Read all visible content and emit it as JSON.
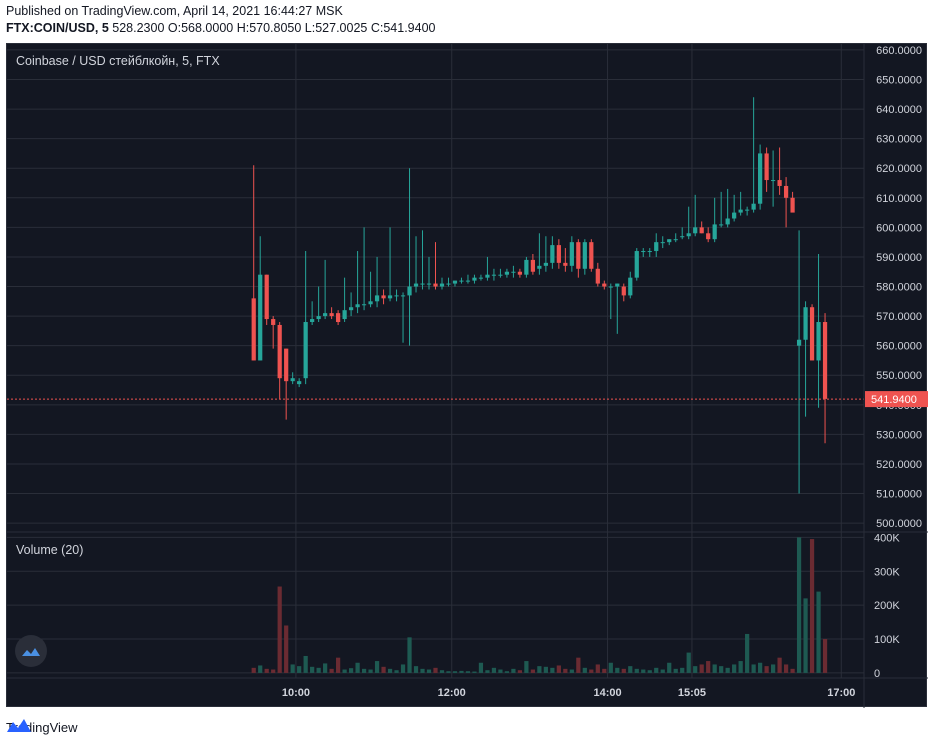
{
  "header": {
    "published": "Published on TradingView.com, April 14, 2021 16:44:27 MSK",
    "symbol": "FTX:COIN/USD, 5",
    "ohlc": "528.2300 O:568.0000 H:570.8050 L:527.0025 C:541.9400"
  },
  "colors": {
    "background": "#131722",
    "grid": "#2a2e39",
    "up": "#26a69a",
    "down": "#ef5350",
    "up_volume": "#1e5a52",
    "down_volume": "#6b2b32",
    "text": "#d1d4dc"
  },
  "footer": {
    "brand": "TradingView"
  },
  "chart_data": {
    "type": "candlestick",
    "title": "Coinbase / USD стейблкойн, 5, FTX",
    "volume_label": "Volume (20)",
    "last_price_label": "541.9400",
    "last_price": 541.94,
    "price_ticks": [
      "660.0000",
      "650.0000",
      "640.0000",
      "630.0000",
      "620.0000",
      "610.0000",
      "600.0000",
      "590.0000",
      "580.0000",
      "570.0000",
      "560.0000",
      "550.0000",
      "540.0000",
      "530.0000",
      "520.0000",
      "510.0000",
      "500.0000"
    ],
    "price_tick_values": [
      660,
      650,
      640,
      630,
      620,
      610,
      600,
      590,
      580,
      570,
      560,
      550,
      540,
      530,
      520,
      510,
      500
    ],
    "ylim": [
      497,
      662
    ],
    "volume_ticks": [
      "400K",
      "300K",
      "200K",
      "100K",
      "0"
    ],
    "volume_tick_values": [
      400000,
      300000,
      200000,
      100000,
      0
    ],
    "volume_ylim": [
      -15000,
      410000
    ],
    "time_ticks": [
      {
        "label": "10:00",
        "index": 6.5
      },
      {
        "label": "12:00",
        "index": 30.5
      },
      {
        "label": "14:00",
        "index": 54.5
      },
      {
        "label": "15:05",
        "index": 67.5
      },
      {
        "label": "17:00",
        "index": 90.5
      }
    ],
    "x_index_range": [
      -38,
      94
    ],
    "candles": [
      {
        "o": 576,
        "h": 621,
        "l": 555,
        "c": 555,
        "v": 15000
      },
      {
        "o": 555,
        "h": 597,
        "l": 555,
        "c": 584,
        "v": 22000
      },
      {
        "o": 584,
        "h": 584,
        "l": 567,
        "c": 569,
        "v": 12000
      },
      {
        "o": 569,
        "h": 570,
        "l": 559,
        "c": 567,
        "v": 10000
      },
      {
        "o": 567,
        "h": 568,
        "l": 542,
        "c": 549,
        "v": 255000
      },
      {
        "o": 559,
        "h": 559,
        "l": 535,
        "c": 548,
        "v": 140000
      },
      {
        "o": 548,
        "h": 551,
        "l": 547,
        "c": 549,
        "v": 25000
      },
      {
        "o": 547,
        "h": 549,
        "l": 546,
        "c": 548,
        "v": 20000
      },
      {
        "o": 549,
        "h": 592,
        "l": 547,
        "c": 568,
        "v": 50000
      },
      {
        "o": 568,
        "h": 575,
        "l": 567,
        "c": 569,
        "v": 18000
      },
      {
        "o": 569,
        "h": 580,
        "l": 568,
        "c": 570,
        "v": 15000
      },
      {
        "o": 570,
        "h": 589,
        "l": 569,
        "c": 571,
        "v": 28000
      },
      {
        "o": 571,
        "h": 573,
        "l": 569,
        "c": 570,
        "v": 12000
      },
      {
        "o": 571,
        "h": 572,
        "l": 567,
        "c": 568,
        "v": 45000
      },
      {
        "o": 569,
        "h": 583,
        "l": 568,
        "c": 572,
        "v": 10000
      },
      {
        "o": 572,
        "h": 578,
        "l": 570,
        "c": 573,
        "v": 14000
      },
      {
        "o": 573,
        "h": 592,
        "l": 571,
        "c": 574,
        "v": 30000
      },
      {
        "o": 574,
        "h": 600,
        "l": 572,
        "c": 574,
        "v": 12000
      },
      {
        "o": 574,
        "h": 585,
        "l": 573,
        "c": 575,
        "v": 10000
      },
      {
        "o": 575,
        "h": 590,
        "l": 573,
        "c": 577,
        "v": 35000
      },
      {
        "o": 577,
        "h": 579,
        "l": 574,
        "c": 576,
        "v": 18000
      },
      {
        "o": 576,
        "h": 600,
        "l": 575,
        "c": 577,
        "v": 12000
      },
      {
        "o": 577,
        "h": 579,
        "l": 575,
        "c": 577,
        "v": 8000
      },
      {
        "o": 577,
        "h": 578,
        "l": 561,
        "c": 577,
        "v": 25000
      },
      {
        "o": 577,
        "h": 620,
        "l": 560,
        "c": 580,
        "v": 105000
      },
      {
        "o": 580,
        "h": 597,
        "l": 578,
        "c": 581,
        "v": 20000
      },
      {
        "o": 581,
        "h": 599,
        "l": 579,
        "c": 581,
        "v": 12000
      },
      {
        "o": 581,
        "h": 590,
        "l": 579,
        "c": 581,
        "v": 10000
      },
      {
        "o": 581,
        "h": 595,
        "l": 579,
        "c": 580,
        "v": 15000
      },
      {
        "o": 580,
        "h": 583,
        "l": 579,
        "c": 581,
        "v": 8000
      },
      {
        "o": 581,
        "h": 583,
        "l": 580,
        "c": 581,
        "v": 5000
      },
      {
        "o": 581,
        "h": 582,
        "l": 580,
        "c": 582,
        "v": 5000
      },
      {
        "o": 582,
        "h": 583,
        "l": 581,
        "c": 582,
        "v": 6000
      },
      {
        "o": 582,
        "h": 584,
        "l": 581,
        "c": 582,
        "v": 5000
      },
      {
        "o": 582,
        "h": 584,
        "l": 581,
        "c": 583,
        "v": 4000
      },
      {
        "o": 583,
        "h": 584,
        "l": 582,
        "c": 583,
        "v": 30000
      },
      {
        "o": 583,
        "h": 590,
        "l": 582,
        "c": 584,
        "v": 8000
      },
      {
        "o": 584,
        "h": 586,
        "l": 582,
        "c": 584,
        "v": 15000
      },
      {
        "o": 584,
        "h": 586,
        "l": 583,
        "c": 584,
        "v": 10000
      },
      {
        "o": 584,
        "h": 586,
        "l": 583,
        "c": 585,
        "v": 5000
      },
      {
        "o": 585,
        "h": 587,
        "l": 583,
        "c": 585,
        "v": 12000
      },
      {
        "o": 585,
        "h": 586,
        "l": 583,
        "c": 584,
        "v": 8000
      },
      {
        "o": 584,
        "h": 590,
        "l": 583,
        "c": 589,
        "v": 35000
      },
      {
        "o": 589,
        "h": 591,
        "l": 584,
        "c": 585,
        "v": 10000
      },
      {
        "o": 586,
        "h": 598,
        "l": 584,
        "c": 587,
        "v": 20000
      },
      {
        "o": 587,
        "h": 597,
        "l": 585,
        "c": 588,
        "v": 18000
      },
      {
        "o": 588,
        "h": 597,
        "l": 586,
        "c": 594,
        "v": 15000
      },
      {
        "o": 594,
        "h": 596,
        "l": 586,
        "c": 588,
        "v": 22000
      },
      {
        "o": 588,
        "h": 593,
        "l": 585,
        "c": 587,
        "v": 12000
      },
      {
        "o": 587,
        "h": 597,
        "l": 585,
        "c": 595,
        "v": 10000
      },
      {
        "o": 595,
        "h": 596,
        "l": 583,
        "c": 586,
        "v": 45000
      },
      {
        "o": 586,
        "h": 596,
        "l": 584,
        "c": 595,
        "v": 15000
      },
      {
        "o": 595,
        "h": 596,
        "l": 585,
        "c": 586,
        "v": 10000
      },
      {
        "o": 586,
        "h": 588,
        "l": 580,
        "c": 581,
        "v": 25000
      },
      {
        "o": 581,
        "h": 582,
        "l": 579,
        "c": 580,
        "v": 12000
      },
      {
        "o": 580,
        "h": 581,
        "l": 569,
        "c": 580,
        "v": 30000
      },
      {
        "o": 580,
        "h": 581,
        "l": 564,
        "c": 581,
        "v": 15000
      },
      {
        "o": 580,
        "h": 581,
        "l": 575,
        "c": 577,
        "v": 12000
      },
      {
        "o": 577,
        "h": 585,
        "l": 576,
        "c": 583,
        "v": 20000
      },
      {
        "o": 583,
        "h": 593,
        "l": 582,
        "c": 592,
        "v": 12000
      },
      {
        "o": 592,
        "h": 593,
        "l": 590,
        "c": 592,
        "v": 10000
      },
      {
        "o": 592,
        "h": 593,
        "l": 590,
        "c": 592,
        "v": 8000
      },
      {
        "o": 592,
        "h": 598,
        "l": 590,
        "c": 595,
        "v": 15000
      },
      {
        "o": 595,
        "h": 597,
        "l": 593,
        "c": 595,
        "v": 10000
      },
      {
        "o": 595,
        "h": 596,
        "l": 594,
        "c": 596,
        "v": 30000
      },
      {
        "o": 596,
        "h": 598,
        "l": 595,
        "c": 596,
        "v": 12000
      },
      {
        "o": 597,
        "h": 600,
        "l": 596,
        "c": 597,
        "v": 15000
      },
      {
        "o": 597,
        "h": 607,
        "l": 596,
        "c": 598,
        "v": 60000
      },
      {
        "o": 598,
        "h": 611,
        "l": 597,
        "c": 600,
        "v": 20000
      },
      {
        "o": 600,
        "h": 602,
        "l": 598,
        "c": 598,
        "v": 25000
      },
      {
        "o": 598,
        "h": 600,
        "l": 595,
        "c": 596,
        "v": 35000
      },
      {
        "o": 596,
        "h": 610,
        "l": 595,
        "c": 601,
        "v": 25000
      },
      {
        "o": 601,
        "h": 612,
        "l": 600,
        "c": 601,
        "v": 20000
      },
      {
        "o": 601,
        "h": 613,
        "l": 600,
        "c": 603,
        "v": 15000
      },
      {
        "o": 603,
        "h": 611,
        "l": 602,
        "c": 605,
        "v": 25000
      },
      {
        "o": 605,
        "h": 612,
        "l": 604,
        "c": 606,
        "v": 35000
      },
      {
        "o": 606,
        "h": 607,
        "l": 604,
        "c": 606,
        "v": 115000
      },
      {
        "o": 606,
        "h": 644,
        "l": 605,
        "c": 608,
        "v": 25000
      },
      {
        "o": 608,
        "h": 628,
        "l": 606,
        "c": 625,
        "v": 30000
      },
      {
        "o": 625,
        "h": 627,
        "l": 612,
        "c": 616,
        "v": 20000
      },
      {
        "o": 616,
        "h": 626,
        "l": 607,
        "c": 616,
        "v": 25000
      },
      {
        "o": 616,
        "h": 627,
        "l": 611,
        "c": 614,
        "v": 45000
      },
      {
        "o": 614,
        "h": 617,
        "l": 600,
        "c": 610,
        "v": 25000
      },
      {
        "o": 610,
        "h": 612,
        "l": 606,
        "c": 605,
        "v": 12000
      },
      {
        "o": 560,
        "h": 599,
        "l": 510,
        "c": 562,
        "v": 400000
      },
      {
        "o": 562,
        "h": 575,
        "l": 536,
        "c": 573,
        "v": 220000
      },
      {
        "o": 573,
        "h": 574,
        "l": 555,
        "c": 555,
        "v": 395000
      },
      {
        "o": 555,
        "h": 591,
        "l": 539,
        "c": 568,
        "v": 240000
      },
      {
        "o": 568,
        "h": 571,
        "l": 527,
        "c": 542,
        "v": 100000
      }
    ]
  }
}
